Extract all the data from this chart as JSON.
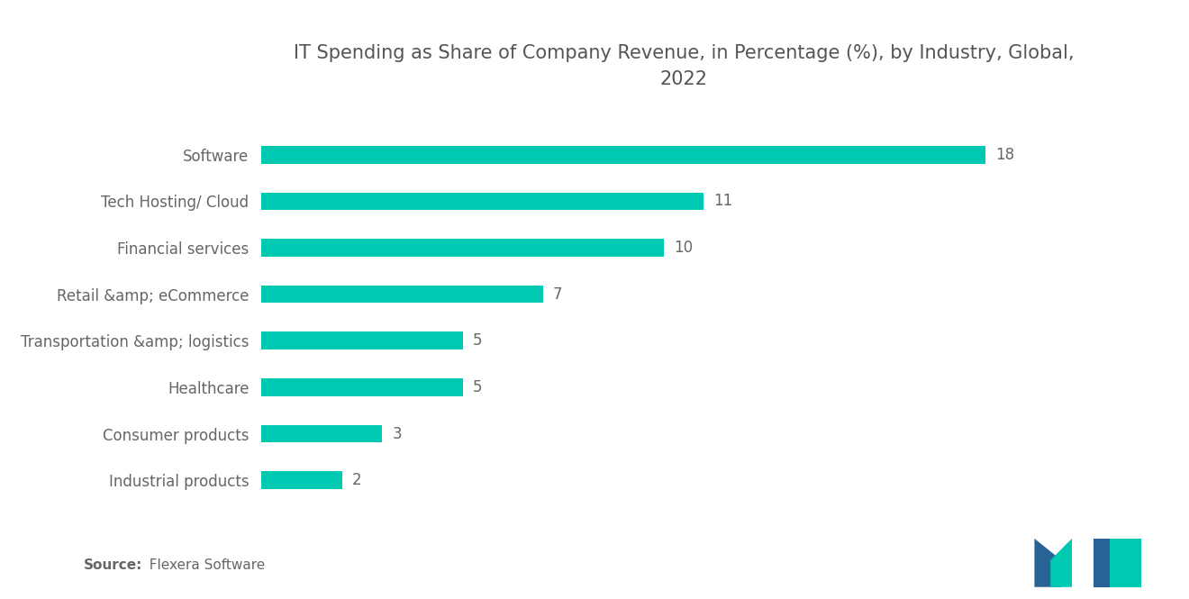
{
  "title": "IT Spending as Share of Company Revenue, in Percentage (%), by Industry, Global,\n2022",
  "categories": [
    "Industrial products",
    "Consumer products",
    "Healthcare",
    "Transportation &amp; logistics",
    "Retail &amp; eCommerce",
    "Financial services",
    "Tech Hosting/ Cloud",
    "Software"
  ],
  "values": [
    2,
    3,
    5,
    5,
    7,
    10,
    11,
    18
  ],
  "bar_color": "#00C9B1",
  "label_color": "#666666",
  "value_color": "#666666",
  "title_color": "#555555",
  "background_color": "#ffffff",
  "source_bold": "Source:",
  "source_normal": "  Flexera Software",
  "bar_height": 0.38,
  "xlim": [
    0,
    21
  ],
  "title_fontsize": 15,
  "label_fontsize": 12,
  "value_fontsize": 12,
  "source_fontsize": 11,
  "logo_color_blue": "#2A6496",
  "logo_color_teal": "#00C9B1"
}
